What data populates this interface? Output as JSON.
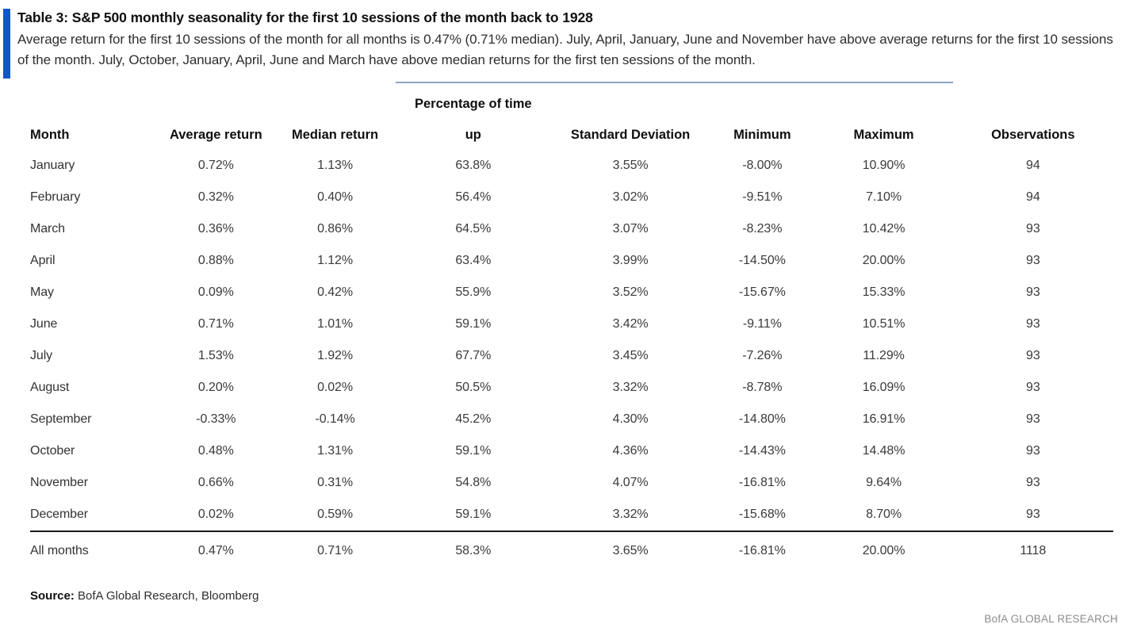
{
  "colors": {
    "accent_bar_blue": "#0e57c8",
    "group_rule_blue": "#8da4c4",
    "total_rule_black": "#1c1c1c",
    "brand_gray": "#8c8c8c"
  },
  "header": {
    "title": "Table 3: S&P 500 monthly seasonality for the first 10 sessions of the month back to 1928",
    "subtitle": "Average return for the first 10 sessions of the month for all months is 0.47% (0.71% median). July, April, January, June and November have above average returns for the first 10 sessions of the month. July, October, January, April, June and March have above median returns for the first ten sessions of the month."
  },
  "table": {
    "group_header": "Percentage of time",
    "columns": [
      "Month",
      "Average return",
      "Median return",
      "up",
      "Standard Deviation",
      "Minimum",
      "Maximum",
      "Observations"
    ],
    "rows": [
      [
        "January",
        "0.72%",
        "1.13%",
        "63.8%",
        "3.55%",
        "-8.00%",
        "10.90%",
        "94"
      ],
      [
        "February",
        "0.32%",
        "0.40%",
        "56.4%",
        "3.02%",
        "-9.51%",
        "7.10%",
        "94"
      ],
      [
        "March",
        "0.36%",
        "0.86%",
        "64.5%",
        "3.07%",
        "-8.23%",
        "10.42%",
        "93"
      ],
      [
        "April",
        "0.88%",
        "1.12%",
        "63.4%",
        "3.99%",
        "-14.50%",
        "20.00%",
        "93"
      ],
      [
        "May",
        "0.09%",
        "0.42%",
        "55.9%",
        "3.52%",
        "-15.67%",
        "15.33%",
        "93"
      ],
      [
        "June",
        "0.71%",
        "1.01%",
        "59.1%",
        "3.42%",
        "-9.11%",
        "10.51%",
        "93"
      ],
      [
        "July",
        "1.53%",
        "1.92%",
        "67.7%",
        "3.45%",
        "-7.26%",
        "11.29%",
        "93"
      ],
      [
        "August",
        "0.20%",
        "0.02%",
        "50.5%",
        "3.32%",
        "-8.78%",
        "16.09%",
        "93"
      ],
      [
        "September",
        "-0.33%",
        "-0.14%",
        "45.2%",
        "4.30%",
        "-14.80%",
        "16.91%",
        "93"
      ],
      [
        "October",
        "0.48%",
        "1.31%",
        "59.1%",
        "4.36%",
        "-14.43%",
        "14.48%",
        "93"
      ],
      [
        "November",
        "0.66%",
        "0.31%",
        "54.8%",
        "4.07%",
        "-16.81%",
        "9.64%",
        "93"
      ],
      [
        "December",
        "0.02%",
        "0.59%",
        "59.1%",
        "3.32%",
        "-15.68%",
        "8.70%",
        "93"
      ]
    ],
    "total_row": [
      "All months",
      "0.47%",
      "0.71%",
      "58.3%",
      "3.65%",
      "-16.81%",
      "20.00%",
      "1118"
    ]
  },
  "footer": {
    "source_label": "Source:",
    "source_text": " BofA Global Research, Bloomberg",
    "brand": "BofA GLOBAL RESEARCH"
  }
}
